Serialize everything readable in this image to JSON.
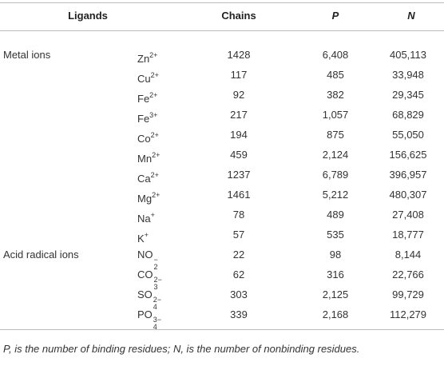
{
  "table": {
    "header": [
      "Ligands",
      "Chains",
      "P",
      "N"
    ],
    "groups": [
      {
        "label": "Metal ions",
        "rows": [
          {
            "ligand": {
              "base": "Zn",
              "sup": "2+"
            },
            "chains": "1428",
            "p": "6,408",
            "n": "405,113"
          },
          {
            "ligand": {
              "base": "Cu",
              "sup": "2+"
            },
            "chains": "117",
            "p": "485",
            "n": "33,948"
          },
          {
            "ligand": {
              "base": "Fe",
              "sup": "2+"
            },
            "chains": "92",
            "p": "382",
            "n": "29,345"
          },
          {
            "ligand": {
              "base": "Fe",
              "sup": "3+"
            },
            "chains": "217",
            "p": "1,057",
            "n": "68,829"
          },
          {
            "ligand": {
              "base": "Co",
              "sup": "2+"
            },
            "chains": "194",
            "p": "875",
            "n": "55,050"
          },
          {
            "ligand": {
              "base": "Mn",
              "sup": "2+"
            },
            "chains": "459",
            "p": "2,124",
            "n": "156,625"
          },
          {
            "ligand": {
              "base": "Ca",
              "sup": "2+"
            },
            "chains": "1237",
            "p": "6,789",
            "n": "396,957"
          },
          {
            "ligand": {
              "base": "Mg",
              "sup": "2+"
            },
            "chains": "1461",
            "p": "5,212",
            "n": "480,307"
          },
          {
            "ligand": {
              "base": "Na",
              "sup": "+"
            },
            "chains": "78",
            "p": "489",
            "n": "27,408"
          },
          {
            "ligand": {
              "base": "K",
              "sup": "+"
            },
            "chains": "57",
            "p": "535",
            "n": "18,777"
          }
        ]
      },
      {
        "label": "Acid radical ions",
        "rows": [
          {
            "ligand": {
              "base": "NO",
              "sub": "2",
              "sup": "−"
            },
            "chains": "22",
            "p": "98",
            "n": "8,144"
          },
          {
            "ligand": {
              "base": "CO",
              "sub": "3",
              "sup": "2−"
            },
            "chains": "62",
            "p": "316",
            "n": "22,766"
          },
          {
            "ligand": {
              "base": "SO",
              "sub": "4",
              "sup": "2−"
            },
            "chains": "303",
            "p": "2,125",
            "n": "99,729"
          },
          {
            "ligand": {
              "base": "PO",
              "sub": "4",
              "sup": "3−"
            },
            "chains": "339",
            "p": "2,168",
            "n": "112,279"
          }
        ]
      }
    ]
  },
  "footnote": "P, is the number of binding residues; N, is the number of nonbinding residues."
}
